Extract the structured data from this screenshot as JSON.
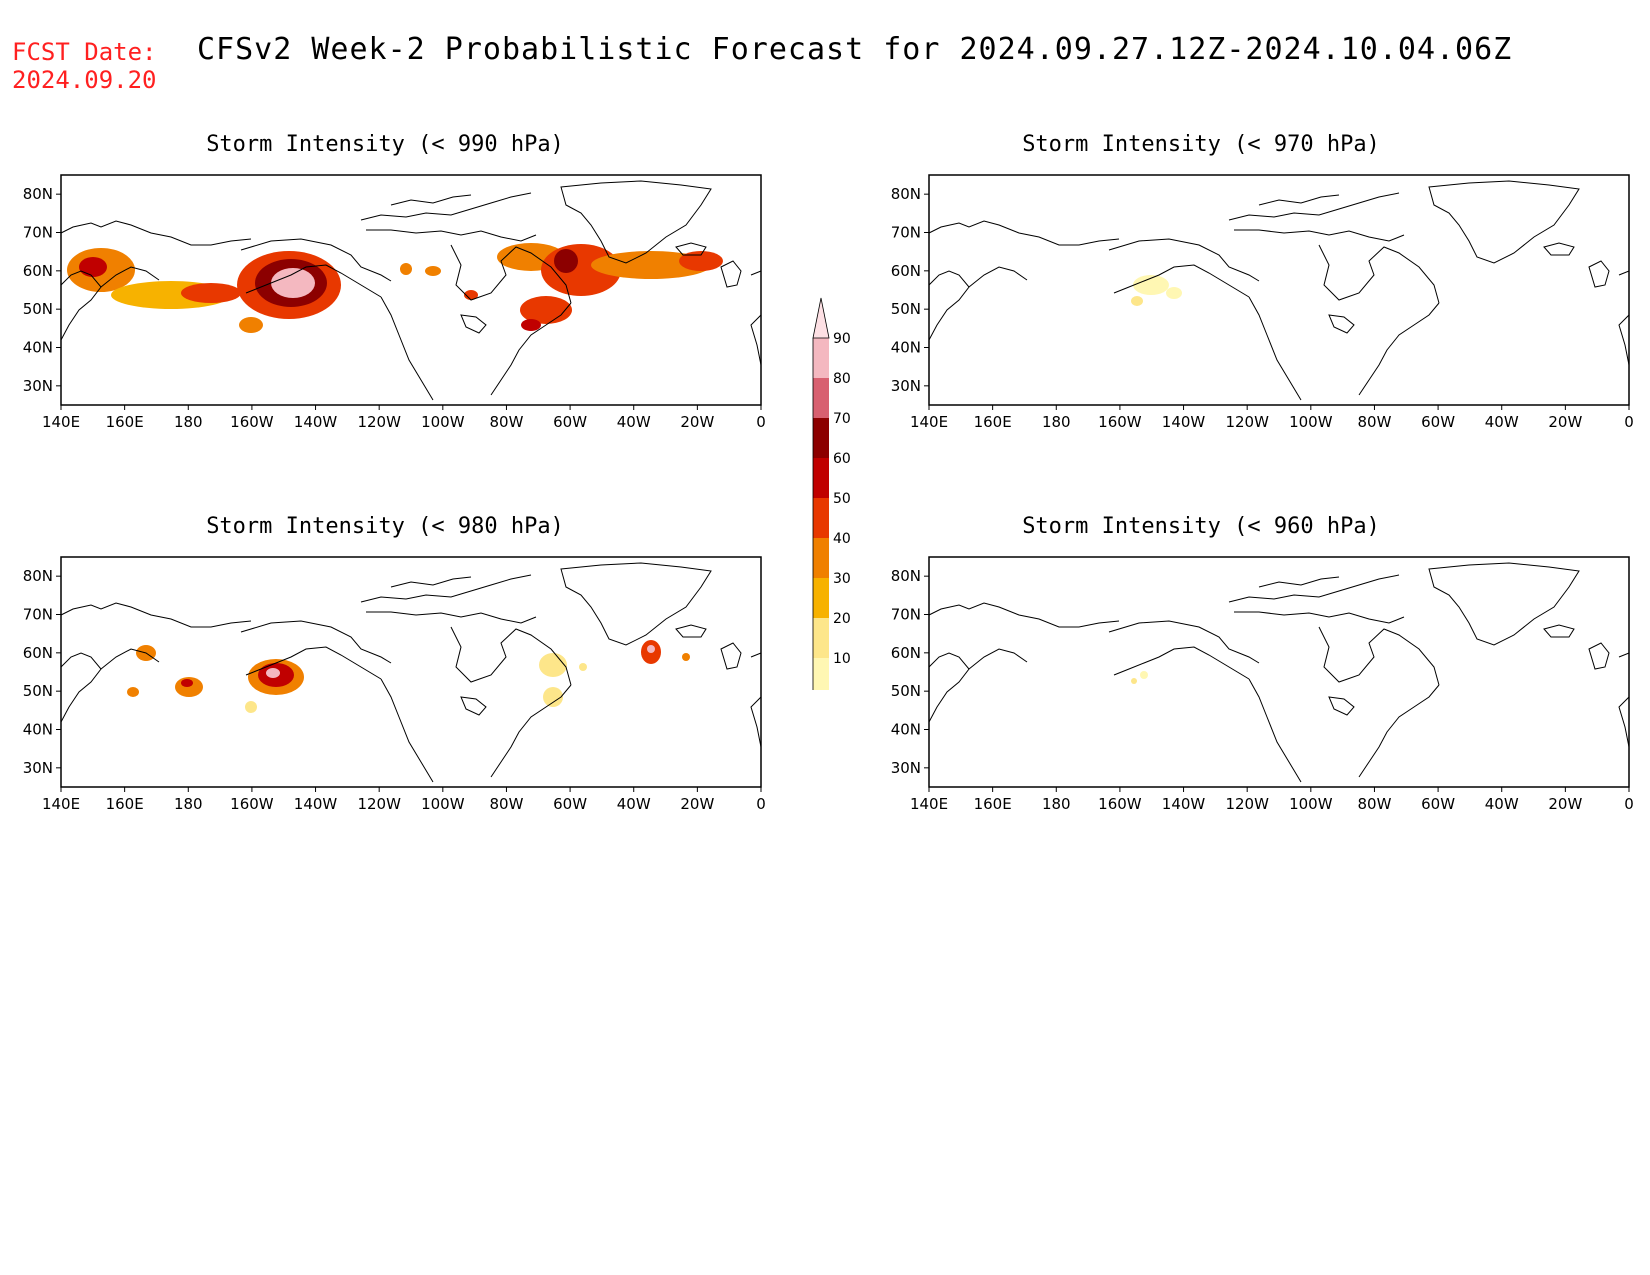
{
  "header": {
    "fcst_label": "FCST Date:",
    "fcst_date": "2024.09.20",
    "title": "CFSv2 Week-2 Probabilistic Forecast for 2024.09.27.12Z-2024.10.04.06Z"
  },
  "axes": {
    "lon_labels": [
      "140E",
      "160E",
      "180",
      "160W",
      "140W",
      "120W",
      "100W",
      "80W",
      "60W",
      "40W",
      "20W",
      "0"
    ],
    "lat_labels": [
      "80N",
      "70N",
      "60N",
      "50N",
      "40N",
      "30N"
    ]
  },
  "colorbar": {
    "levels": [
      "10",
      "20",
      "30",
      "40",
      "50",
      "60",
      "70",
      "80",
      "90"
    ],
    "colors": [
      "#fff7b3",
      "#fde68a",
      "#f7b200",
      "#f08000",
      "#e83800",
      "#c00000",
      "#8c0000",
      "#d86070",
      "#f4b8c0",
      "#fde0e4"
    ]
  },
  "panels": [
    {
      "id": "p990",
      "title": "Storm Intensity (< 990 hPa)"
    },
    {
      "id": "p970",
      "title": "Storm Intensity (< 970 hPa)"
    },
    {
      "id": "p980",
      "title": "Storm Intensity (< 980 hPa)"
    },
    {
      "id": "p960",
      "title": "Storm Intensity (< 960 hPa)"
    }
  ]
}
